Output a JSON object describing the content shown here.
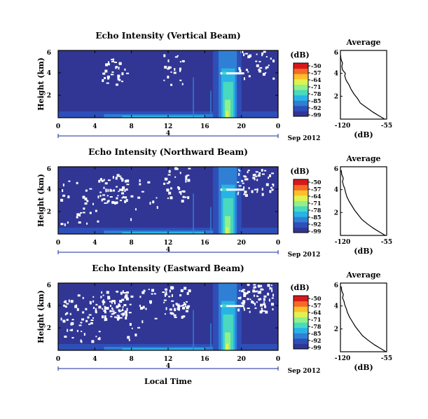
{
  "figure": {
    "xlabel": "Local Time",
    "date_label": "Sep 2012",
    "colorbar_unit": "(dB)",
    "colorbar_ticks": [
      "-50",
      "-57",
      "-64",
      "-71",
      "-78",
      "-85",
      "-92",
      "-99"
    ],
    "avg_title": "Average",
    "avg_xlabel": "(dB)",
    "avg_xticks": [
      "-120",
      "-55"
    ],
    "colors": [
      "#313695",
      "#2e4fb8",
      "#2f7fd4",
      "#28b3e6",
      "#49d8c0",
      "#8ff08c",
      "#e0f250",
      "#fdbf2e",
      "#f56a24",
      "#d7191c"
    ]
  },
  "chart_data": [
    {
      "type": "heatmap",
      "title": "Echo Intensity (Vertical Beam)",
      "ylabel": "Height (km)",
      "x_ticks": [
        "0",
        "4",
        "8",
        "12",
        "16",
        "20",
        "0"
      ],
      "y_ticks": [
        "6",
        "4",
        "2"
      ],
      "x_range": [
        0,
        24
      ],
      "y_range": [
        0,
        6
      ],
      "day_marker": "4",
      "z_range_db": [
        -99,
        -50
      ],
      "event": {
        "start_hour": 17.5,
        "end_hour": 19.5,
        "peak_db": -64
      },
      "average_profile": {
        "height_km": [
          0.0,
          0.3,
          0.6,
          1.0,
          1.4,
          1.8,
          2.2,
          2.6,
          3.0,
          3.4,
          3.8,
          4.0,
          4.3,
          4.6,
          4.9,
          5.2,
          5.6
        ],
        "db": [
          -58,
          -66,
          -74,
          -83,
          -92,
          -96,
          -101,
          -105,
          -108,
          -112,
          -114,
          -113,
          -117,
          -118,
          -117,
          -119,
          -120
        ]
      }
    },
    {
      "type": "heatmap",
      "title": "Echo Intensity (Northward Beam)",
      "ylabel": "Height (km)",
      "x_ticks": [
        "0",
        "4",
        "8",
        "12",
        "16",
        "20",
        "0"
      ],
      "y_ticks": [
        "6",
        "4",
        "2"
      ],
      "x_range": [
        0,
        24
      ],
      "y_range": [
        0,
        6
      ],
      "day_marker": "4",
      "z_range_db": [
        -99,
        -50
      ],
      "event": {
        "start_hour": 17.5,
        "end_hour": 19.5,
        "peak_db": -62
      },
      "average_profile": {
        "height_km": [
          0.0,
          0.3,
          0.6,
          1.0,
          1.4,
          1.8,
          2.2,
          2.6,
          3.0,
          3.4,
          3.8,
          4.1,
          4.4,
          4.7,
          5.0,
          5.3,
          5.7
        ],
        "db": [
          -57,
          -65,
          -73,
          -82,
          -90,
          -95,
          -100,
          -104,
          -108,
          -111,
          -113,
          -114,
          -116,
          -117,
          -116,
          -118,
          -119
        ]
      }
    },
    {
      "type": "heatmap",
      "title": "Echo Intensity (Eastward Beam)",
      "ylabel": "Height (km)",
      "x_ticks": [
        "0",
        "4",
        "8",
        "12",
        "16",
        "20",
        "0"
      ],
      "y_ticks": [
        "6",
        "4",
        "2"
      ],
      "x_range": [
        0,
        24
      ],
      "y_range": [
        0,
        6
      ],
      "day_marker": "4",
      "z_range_db": [
        -99,
        -50
      ],
      "event": {
        "start_hour": 17.5,
        "end_hour": 19.5,
        "peak_db": -60
      },
      "average_profile": {
        "height_km": [
          0.0,
          0.3,
          0.6,
          1.0,
          1.4,
          1.8,
          2.2,
          2.6,
          3.0,
          3.4,
          3.8,
          4.1,
          4.4,
          4.7,
          5.0,
          5.3,
          5.7
        ],
        "db": [
          -56,
          -64,
          -72,
          -81,
          -89,
          -94,
          -99,
          -103,
          -107,
          -110,
          -112,
          -114,
          -115,
          -117,
          -116,
          -118,
          -119
        ]
      }
    }
  ]
}
